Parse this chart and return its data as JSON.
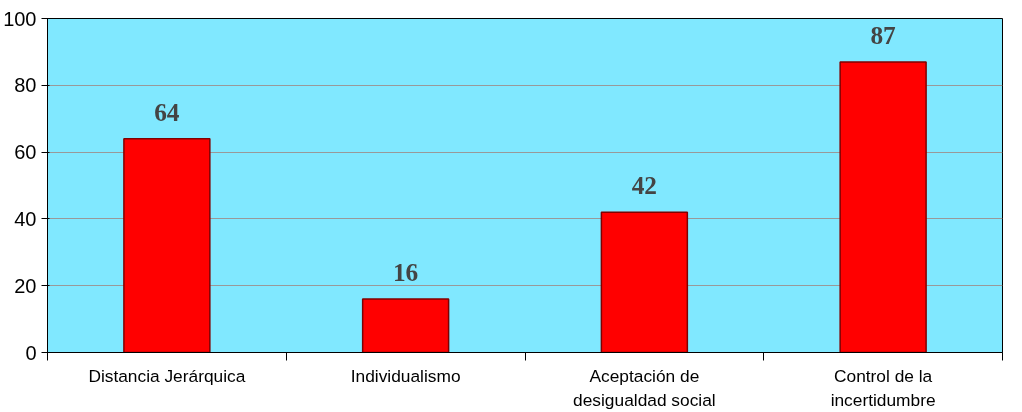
{
  "chart_data": {
    "type": "bar",
    "categories": [
      "Distancia Jerárquica",
      "Individualismo",
      "Aceptación de\ndesigualdad social",
      "Control de la\nincertidumbre"
    ],
    "values": [
      64,
      16,
      42,
      87
    ],
    "color": "#ff0000",
    "ylim": [
      0,
      100
    ],
    "yticks": [
      0,
      20,
      40,
      60,
      80,
      100
    ],
    "grid": "y",
    "data_labels": true
  }
}
